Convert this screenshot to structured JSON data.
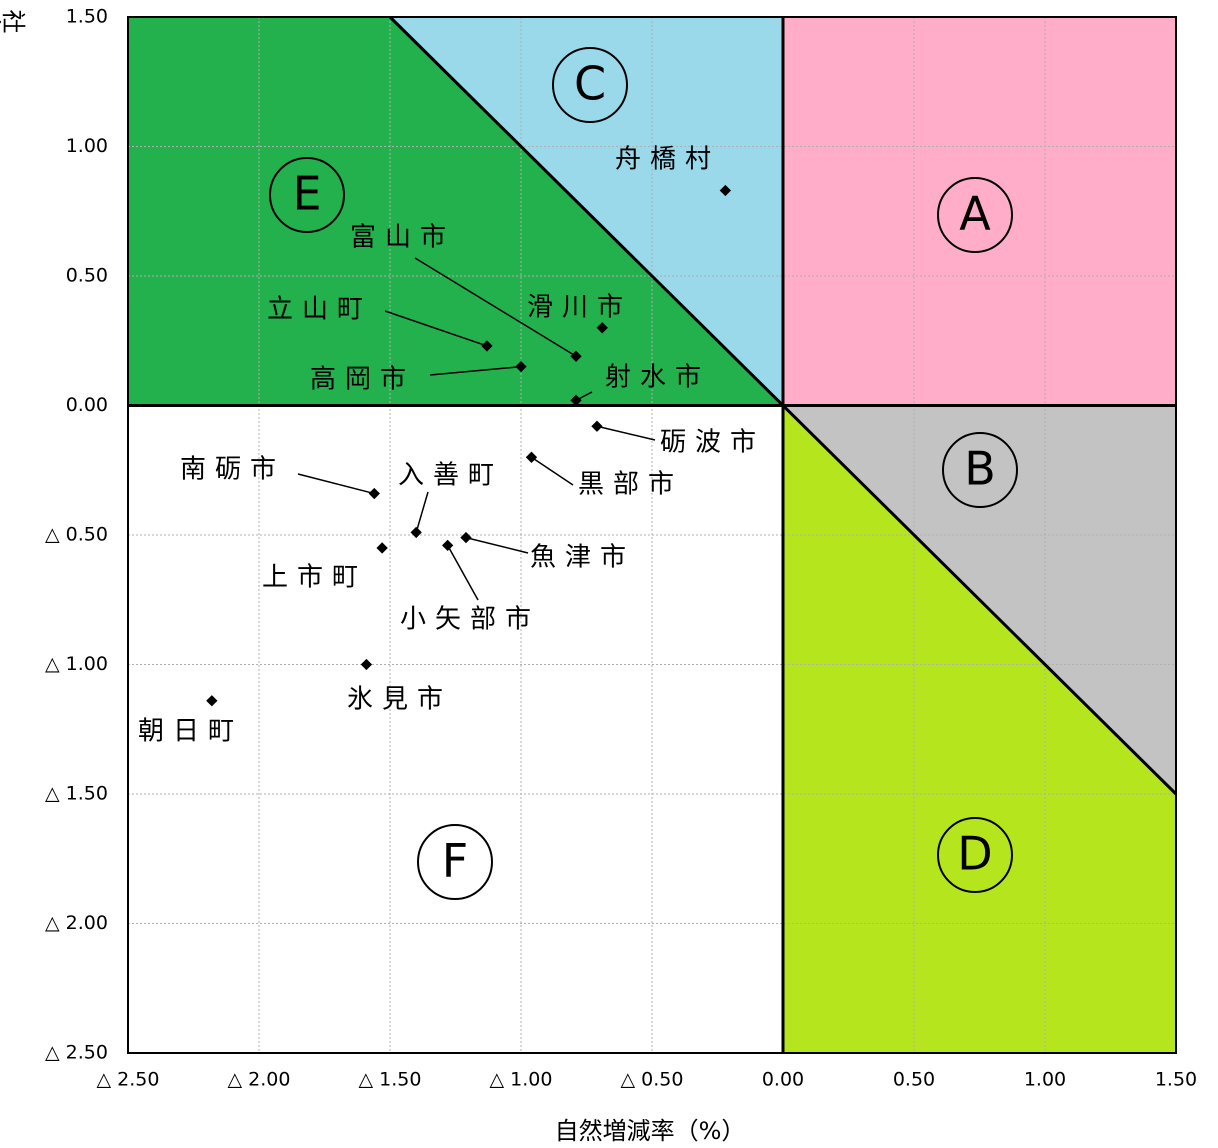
{
  "chart_data": {
    "type": "scatter",
    "x_label": "自然増減率（%）",
    "y_label": "社会増減率(%)",
    "xlim": [
      -2.5,
      1.5
    ],
    "ylim": [
      -2.5,
      1.5
    ],
    "xticks": [
      {
        "value": -2.5,
        "label": "△ 2.50"
      },
      {
        "value": -2,
        "label": "△ 2.00"
      },
      {
        "value": -1.5,
        "label": "△ 1.50"
      },
      {
        "value": -1,
        "label": "△ 1.00"
      },
      {
        "value": -0.5,
        "label": "△ 0.50"
      },
      {
        "value": 0,
        "label": "0.00"
      },
      {
        "value": 0.5,
        "label": "0.50"
      },
      {
        "value": 1,
        "label": "1.00"
      },
      {
        "value": 1.5,
        "label": "1.50"
      }
    ],
    "yticks": [
      {
        "value": 1.5,
        "label": "1.50"
      },
      {
        "value": 1,
        "label": "1.00"
      },
      {
        "value": 0.5,
        "label": "0.50"
      },
      {
        "value": 0,
        "label": "0.00"
      },
      {
        "value": -0.5,
        "label": "△ 0.50"
      },
      {
        "value": -1,
        "label": "△ 1.00"
      },
      {
        "value": -1.5,
        "label": "△ 1.50"
      },
      {
        "value": -2,
        "label": "△ 2.00"
      },
      {
        "value": -2.5,
        "label": "△ 2.50"
      }
    ],
    "grid": true,
    "regions": [
      {
        "label": "A",
        "color": "#ffadc9"
      },
      {
        "label": "B",
        "color": "#c3c3c3"
      },
      {
        "label": "C",
        "color": "#99d9ea"
      },
      {
        "label": "D",
        "color": "#b5e61d"
      },
      {
        "label": "E",
        "color": "#22b14c"
      },
      {
        "label": "F",
        "color": "#ffffff"
      }
    ],
    "points": {
      "color": "#000000",
      "labels": [
        "舟橋村",
        "滑川市",
        "富山市",
        "立山町",
        "高岡市",
        "射水市",
        "砺波市",
        "黒部市",
        "南砺市",
        "入善町",
        "魚津市",
        "上市町",
        "小矢部市",
        "氷見市",
        "朝日町"
      ],
      "x": [
        -0.22,
        -0.69,
        -0.79,
        -1.13,
        -1.0,
        -0.79,
        -0.71,
        -0.96,
        -1.56,
        -1.4,
        -1.21,
        -1.53,
        -1.28,
        -1.59,
        -2.18
      ],
      "y": [
        0.83,
        0.3,
        0.19,
        0.23,
        0.15,
        0.02,
        -0.08,
        -0.2,
        -0.34,
        -0.49,
        -0.51,
        -0.55,
        -0.54,
        -1.0,
        -1.14
      ]
    }
  }
}
